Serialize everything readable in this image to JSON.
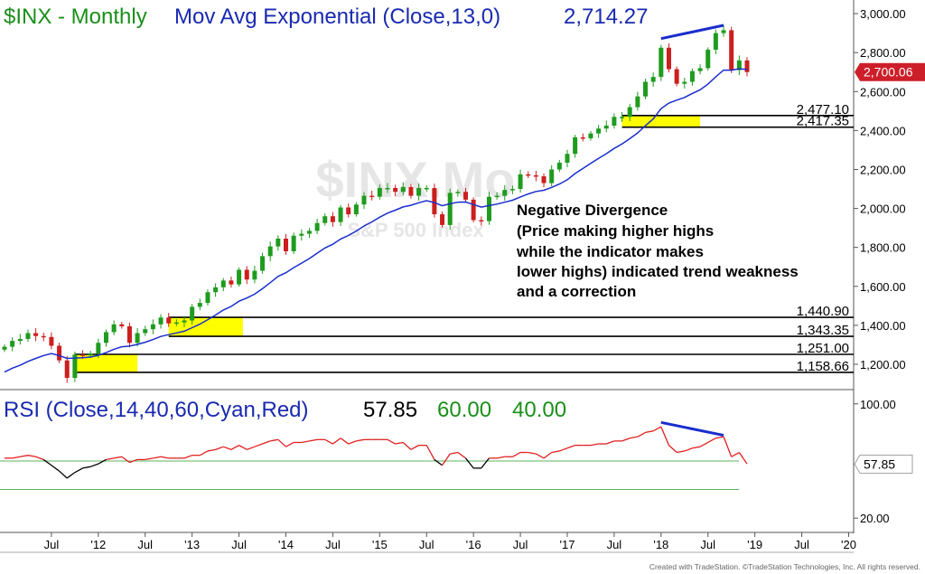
{
  "header": {
    "symbol_label": "$INX - Monthly",
    "indicator_label": "Mov Avg Exponential (Close,13,0)",
    "indicator_value": "2,714.27",
    "watermark_symbol": "$INX.Mo",
    "watermark_name": "S&P 500 Index"
  },
  "annotation": {
    "lines": [
      "Negative Divergence",
      "(Price making higher highs",
      "while the indicator makes",
      "lower highs) indicated trend weakness",
      "and a correction"
    ]
  },
  "rsi_header": {
    "label": "RSI (Close,14,40,60,Cyan,Red)",
    "value": "57.85",
    "upper": "60.00",
    "lower": "40.00"
  },
  "footer": "Created with TradeStation. ©TradeStation Technologies, Inc. All rights reserved.",
  "colors": {
    "up_candle": "#1f9b1f",
    "down_candle": "#cc1f1f",
    "ema_line": "#1a2ecc",
    "rsi_above": "#e02020",
    "rsi_below": "#000000",
    "zone_fill": "#ffff00",
    "title_green": "#1a8f1a",
    "title_blue": "#1a2ab0",
    "last_price_bg": "#cc1f2a"
  },
  "chart_data": [
    {
      "type": "candlestick",
      "title": "$INX - Monthly",
      "ylim": [
        1070,
        3070
      ],
      "y_ticks": [
        1200,
        1400,
        1600,
        1800,
        2000,
        2200,
        2400,
        2600,
        2800,
        3000
      ],
      "y_tick_labels": [
        "1,200.00",
        "1,400.00",
        "1,600.00",
        "1,800.00",
        "2,000.00",
        "2,200.00",
        "2,400.00",
        "2,600.00",
        "2,800.00",
        "3,000.00"
      ],
      "x_ticks": [
        {
          "label": "Jul",
          "index": 6
        },
        {
          "label": "'12",
          "index": 12
        },
        {
          "label": "Jul",
          "index": 18
        },
        {
          "label": "'13",
          "index": 24
        },
        {
          "label": "Jul",
          "index": 30
        },
        {
          "label": "'14",
          "index": 36
        },
        {
          "label": "Jul",
          "index": 42
        },
        {
          "label": "'15",
          "index": 48
        },
        {
          "label": "Jul",
          "index": 54
        },
        {
          "label": "'16",
          "index": 60
        },
        {
          "label": "Jul",
          "index": 66
        },
        {
          "label": "'17",
          "index": 72
        },
        {
          "label": "Jul",
          "index": 78
        },
        {
          "label": "'18",
          "index": 84
        },
        {
          "label": "Jul",
          "index": 90
        },
        {
          "label": "'19",
          "index": 96
        },
        {
          "label": "Jul",
          "index": 102
        },
        {
          "label": "'20",
          "index": 108
        }
      ],
      "x_index_range": [
        -0.5,
        110.5
      ],
      "closes": [
        1290,
        1320,
        1330,
        1360,
        1345,
        1340,
        1295,
        1220,
        1130,
        1250,
        1245,
        1255,
        1310,
        1365,
        1405,
        1395,
        1310,
        1360,
        1380,
        1405,
        1440,
        1410,
        1415,
        1425,
        1495,
        1515,
        1570,
        1595,
        1630,
        1610,
        1685,
        1635,
        1680,
        1755,
        1805,
        1845,
        1780,
        1860,
        1870,
        1885,
        1925,
        1960,
        1930,
        2005,
        1970,
        2020,
        2065,
        2060,
        2105,
        2105,
        2085,
        2110,
        2065,
        2105,
        2105,
        1970,
        1915,
        2080,
        2085,
        2045,
        1940,
        1935,
        2060,
        2065,
        2095,
        2100,
        2175,
        2170,
        2165,
        2130,
        2200,
        2235,
        2280,
        2365,
        2360,
        2385,
        2410,
        2425,
        2470,
        2470,
        2520,
        2575,
        2650,
        2675,
        2825,
        2715,
        2640,
        2650,
        2705,
        2720,
        2815,
        2900,
        2915,
        2710,
        2760,
        2700
      ],
      "ema": {
        "name": "Mov Avg Exponential (Close,13,0)",
        "values": [
          1160,
          1180,
          1195,
          1215,
          1230,
          1245,
          1255,
          1245,
          1230,
          1232,
          1234,
          1237,
          1246,
          1260,
          1277,
          1290,
          1293,
          1302,
          1313,
          1327,
          1343,
          1352,
          1361,
          1370,
          1388,
          1406,
          1429,
          1453,
          1479,
          1497,
          1524,
          1540,
          1560,
          1588,
          1619,
          1651,
          1670,
          1696,
          1719,
          1743,
          1770,
          1797,
          1816,
          1843,
          1861,
          1884,
          1910,
          1931,
          1955,
          1976,
          1991,
          2008,
          2016,
          2029,
          2040,
          2030,
          2014,
          2024,
          2032,
          2033,
          2020,
          2007,
          2015,
          2022,
          2032,
          2042,
          2059,
          2074,
          2087,
          2093,
          2108,
          2125,
          2147,
          2179,
          2205,
          2231,
          2257,
          2281,
          2308,
          2331,
          2358,
          2388,
          2425,
          2460,
          2512,
          2541,
          2556,
          2570,
          2590,
          2609,
          2638,
          2676,
          2710,
          2710,
          2717,
          2714
        ]
      },
      "levels": [
        {
          "value": 2477.1,
          "label": "2,477.10"
        },
        {
          "value": 2417.35,
          "label": "2,417.35"
        },
        {
          "value": 1440.9,
          "label": "1,440.90"
        },
        {
          "value": 1343.35,
          "label": "1,343.35"
        },
        {
          "value": 1251.0,
          "label": "1,251.00"
        },
        {
          "value": 1158.66,
          "label": "1,158.66"
        }
      ],
      "zones": [
        {
          "from_index": 79,
          "to_index": 89,
          "low": 2417.35,
          "high": 2477.1
        },
        {
          "from_index": 21,
          "to_index": 30.5,
          "low": 1343.35,
          "high": 1440.9
        },
        {
          "from_index": 9,
          "to_index": 17,
          "low": 1158.66,
          "high": 1251.0
        }
      ],
      "divergence_line": {
        "from": {
          "index": 84,
          "value": 2872
        },
        "to": {
          "index": 92,
          "value": 2940
        }
      },
      "last_price": "2,700.06"
    },
    {
      "type": "line",
      "title": "RSI (Close,14,40,60,Cyan,Red)",
      "ylim": [
        10,
        110
      ],
      "y_ticks": [
        20,
        100
      ],
      "y_tick_labels": [
        "20.00",
        "100.00"
      ],
      "thresholds": [
        {
          "value": 60,
          "label": "60.00"
        },
        {
          "value": 40,
          "label": "40.00"
        }
      ],
      "values": [
        62,
        62,
        63,
        64,
        63,
        61,
        57,
        53,
        48,
        52,
        55,
        56,
        58,
        61,
        62,
        63,
        59,
        61,
        61,
        62,
        63,
        62,
        62,
        62,
        64,
        64,
        67,
        68,
        70,
        68,
        71,
        68,
        70,
        72,
        74,
        75,
        70,
        73,
        73,
        74,
        75,
        75,
        72,
        76,
        72,
        74,
        75,
        75,
        75,
        75,
        72,
        73,
        68,
        71,
        71,
        61,
        57,
        65,
        66,
        62,
        55,
        55,
        62,
        62,
        63,
        63,
        66,
        66,
        65,
        62,
        66,
        67,
        69,
        71,
        71,
        71,
        72,
        72,
        74,
        74,
        76,
        77,
        80,
        81,
        84,
        71,
        66,
        67,
        69,
        70,
        73,
        76,
        77,
        63,
        66,
        58
      ],
      "last_value": "57.85",
      "divergence_line": {
        "from": {
          "index": 84,
          "value": 87
        },
        "to": {
          "index": 92,
          "value": 78
        }
      }
    }
  ]
}
